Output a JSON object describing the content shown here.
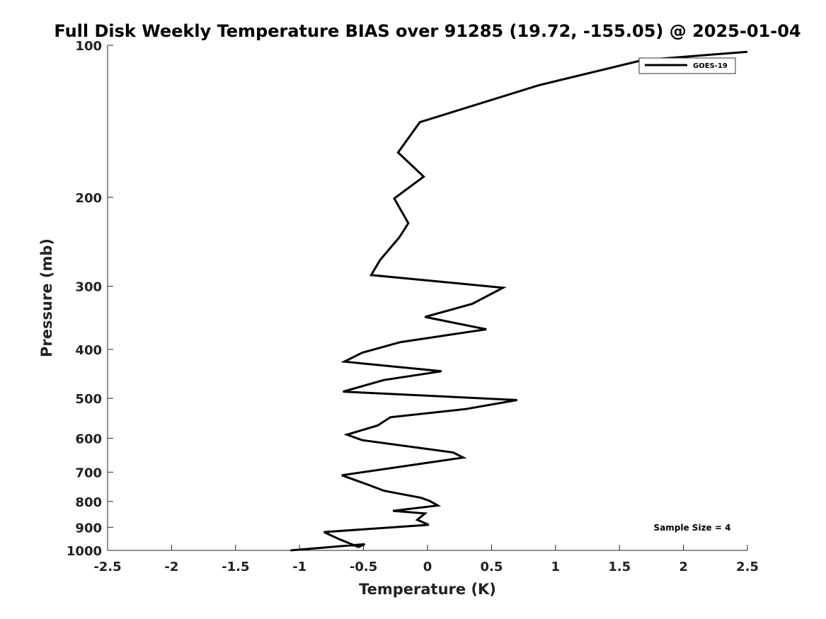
{
  "chart_data": {
    "type": "line",
    "title": "Full Disk Weekly Temperature BIAS over 91285 (19.72, -155.05) @ 2025-01-04",
    "xlabel": "Temperature (K)",
    "ylabel": "Pressure (mb)",
    "xlim": [
      -2.5,
      2.5
    ],
    "ylim": [
      1000,
      100
    ],
    "yscale": "log",
    "y_reversed": true,
    "xticks": [
      "-2.5",
      "-2",
      "-1.5",
      "-1",
      "-0.5",
      "0",
      "0.5",
      "1",
      "1.5",
      "2",
      "2.5"
    ],
    "yticks": [
      "100",
      "200",
      "300",
      "400",
      "500",
      "600",
      "700",
      "800",
      "900",
      "1000"
    ],
    "grid": false,
    "legend": {
      "position": "top-right",
      "entries": [
        "GOES-19"
      ]
    },
    "annotation": "Sample Size = 4",
    "series": [
      {
        "name": "GOES-19",
        "color": "#000000",
        "x": [
          2.5,
          1.68,
          0.87,
          -0.06,
          -0.23,
          -0.03,
          -0.26,
          -0.15,
          -0.22,
          -0.37,
          -0.44,
          0.59,
          0.35,
          -0.02,
          0.46,
          -0.21,
          -0.51,
          -0.65,
          0.11,
          -0.34,
          -0.66,
          0.7,
          0.3,
          -0.29,
          -0.39,
          -0.63,
          -0.51,
          0.2,
          0.28,
          -0.33,
          -0.67,
          -0.46,
          -0.34,
          -0.05,
          0.02,
          0.08,
          -0.27,
          -0.02,
          -0.08,
          0.01,
          -0.81,
          -0.69,
          -0.54,
          -0.49,
          -1.07
        ],
        "y": [
          103,
          107,
          120,
          142,
          163,
          182,
          201,
          225,
          240,
          266,
          285,
          302,
          325,
          345,
          365,
          387,
          406,
          423,
          442,
          460,
          485,
          504,
          525,
          545,
          566,
          590,
          605,
          640,
          655,
          690,
          710,
          742,
          762,
          787,
          799,
          815,
          835,
          845,
          870,
          890,
          920,
          950,
          985,
          972,
          1000
        ]
      }
    ]
  }
}
